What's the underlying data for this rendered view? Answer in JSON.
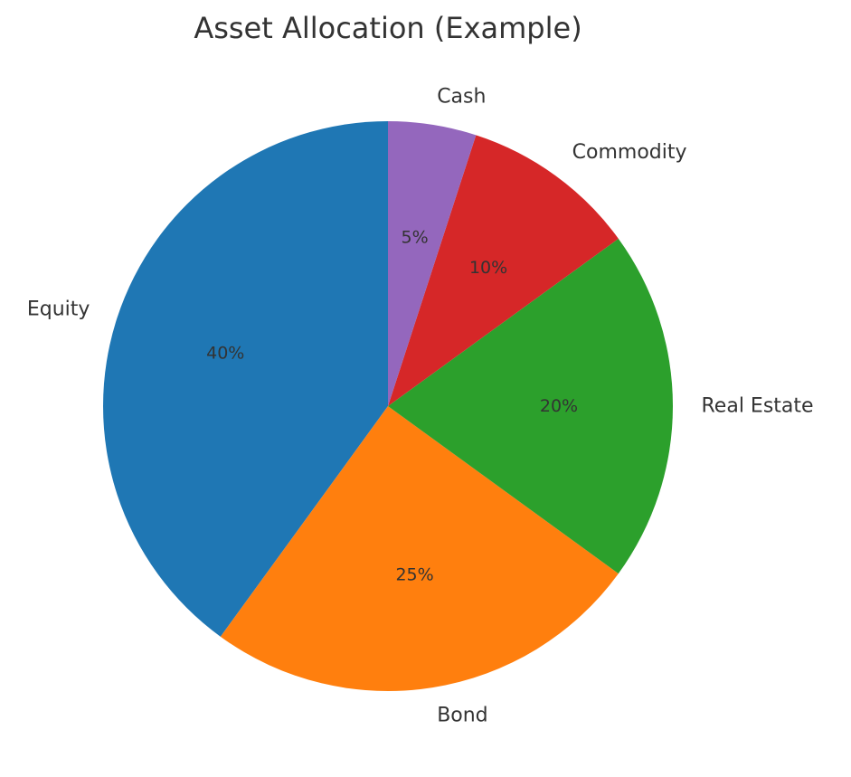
{
  "chart_data": {
    "type": "pie",
    "title": "Asset Allocation (Example)",
    "start_angle_deg": 90,
    "direction": "counterclockwise",
    "slices": [
      {
        "label": "Equity",
        "value": 40,
        "pct_label": "40%",
        "color": "#1f77b4"
      },
      {
        "label": "Bond",
        "value": 25,
        "pct_label": "25%",
        "color": "#ff7f0e"
      },
      {
        "label": "Real Estate",
        "value": 20,
        "pct_label": "20%",
        "color": "#2ca02c"
      },
      {
        "label": "Commodity",
        "value": 10,
        "pct_label": "10%",
        "color": "#d62728"
      },
      {
        "label": "Cash",
        "value": 5,
        "pct_label": "5%",
        "color": "#9467bd"
      }
    ]
  }
}
